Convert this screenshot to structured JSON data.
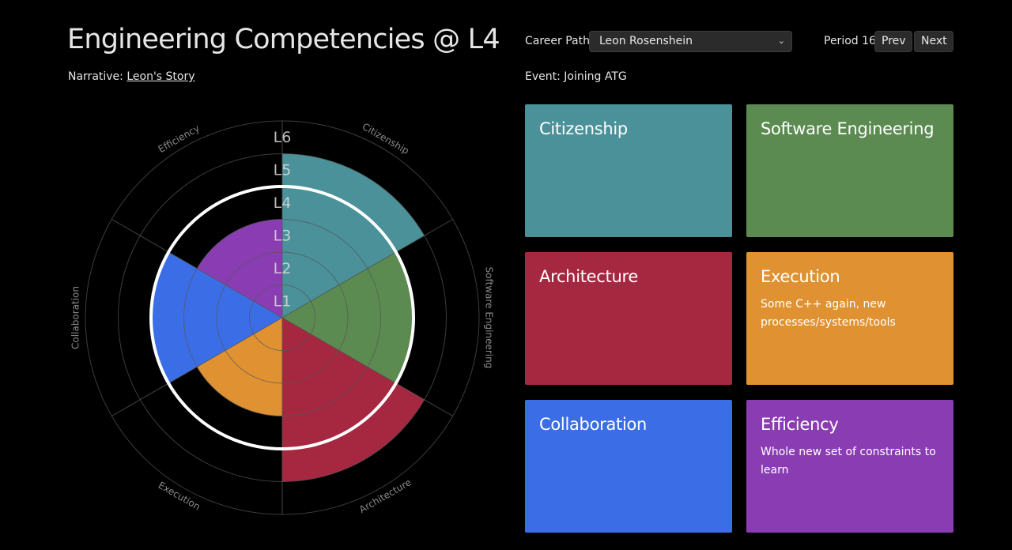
{
  "header": {
    "title": "Engineering Competencies @ L4",
    "narrative_label": "Narrative:",
    "narrative_link": "Leon's Story"
  },
  "controls": {
    "career_path_label": "Career Path",
    "career_path_value": "Leon Rosenshein",
    "period_label": "Period 16",
    "prev_label": "Prev",
    "next_label": "Next"
  },
  "event": {
    "label": "Event: Joining ATG"
  },
  "colors": {
    "Citizenship": "#4a9199",
    "Software Engineering": "#5b8b50",
    "Architecture": "#a62840",
    "Execution": "#e09233",
    "Collaboration": "#3b6ee6",
    "Efficiency": "#8a3db3"
  },
  "cards": [
    {
      "name": "Citizenship",
      "description": ""
    },
    {
      "name": "Software Engineering",
      "description": ""
    },
    {
      "name": "Architecture",
      "description": ""
    },
    {
      "name": "Execution",
      "description": "Some C++ again, new processes/systems/tools"
    },
    {
      "name": "Collaboration",
      "description": ""
    },
    {
      "name": "Efficiency",
      "description": "Whole new set of constraints to learn"
    }
  ],
  "chart_data": {
    "type": "radial-bar",
    "levels": [
      "L1",
      "L2",
      "L3",
      "L4",
      "L5",
      "L6"
    ],
    "current_level": 4,
    "axis_labels": [
      "Citizenship",
      "Software Engineering",
      "Architecture",
      "Execution",
      "Collaboration",
      "Efficiency"
    ],
    "series": [
      {
        "name": "Citizenship",
        "value": 5
      },
      {
        "name": "Software Engineering",
        "value": 4
      },
      {
        "name": "Architecture",
        "value": 5
      },
      {
        "name": "Execution",
        "value": 3
      },
      {
        "name": "Collaboration",
        "value": 4
      },
      {
        "name": "Efficiency",
        "value": 3
      }
    ]
  }
}
